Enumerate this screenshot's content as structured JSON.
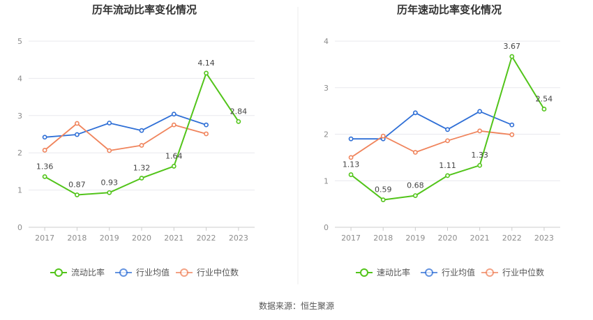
{
  "colors": {
    "company": "#52c41a",
    "industry_avg": "#2f6fd6",
    "industry_median": "#f0845c",
    "grid": "#e8e8ee",
    "axis": "#cccccc",
    "divider": "#eeeeee"
  },
  "source_text": "数据来源：恒生聚源",
  "chart_data": [
    {
      "type": "line",
      "title": "历年流动比率变化情况",
      "x": [
        "2017",
        "2018",
        "2019",
        "2020",
        "2021",
        "2022",
        "2023"
      ],
      "ylim": [
        0,
        5
      ],
      "yticks": [
        0,
        1,
        2,
        3,
        4,
        5
      ],
      "grid": true,
      "legend_position": "bottom",
      "series": [
        {
          "name": "流动比率",
          "color_key": "company",
          "values": [
            1.36,
            0.87,
            0.93,
            1.32,
            1.64,
            4.14,
            2.84
          ],
          "labels": [
            "1.36",
            "0.87",
            "0.93",
            "1.32",
            "1.64",
            "4.14",
            "2.84"
          ]
        },
        {
          "name": "行业均值",
          "color_key": "industry_avg",
          "values": [
            2.42,
            2.49,
            2.8,
            2.6,
            3.04,
            2.75,
            null
          ]
        },
        {
          "name": "行业中位数",
          "color_key": "industry_median",
          "values": [
            2.07,
            2.79,
            2.06,
            2.2,
            2.75,
            2.51,
            null
          ]
        }
      ]
    },
    {
      "type": "line",
      "title": "历年速动比率变化情况",
      "x": [
        "2017",
        "2018",
        "2019",
        "2020",
        "2021",
        "2022",
        "2023"
      ],
      "ylim": [
        0,
        4
      ],
      "yticks": [
        0,
        1,
        2,
        3,
        4
      ],
      "grid": true,
      "legend_position": "bottom",
      "series": [
        {
          "name": "速动比率",
          "color_key": "company",
          "values": [
            1.13,
            0.59,
            0.68,
            1.11,
            1.33,
            3.67,
            2.54
          ],
          "labels": [
            "1.13",
            "0.59",
            "0.68",
            "1.11",
            "1.33",
            "3.67",
            "2.54"
          ]
        },
        {
          "name": "行业均值",
          "color_key": "industry_avg",
          "values": [
            1.9,
            1.9,
            2.46,
            2.1,
            2.49,
            2.2,
            null
          ]
        },
        {
          "name": "行业中位数",
          "color_key": "industry_median",
          "values": [
            1.5,
            1.96,
            1.61,
            1.86,
            2.07,
            1.99,
            null
          ]
        }
      ]
    }
  ]
}
